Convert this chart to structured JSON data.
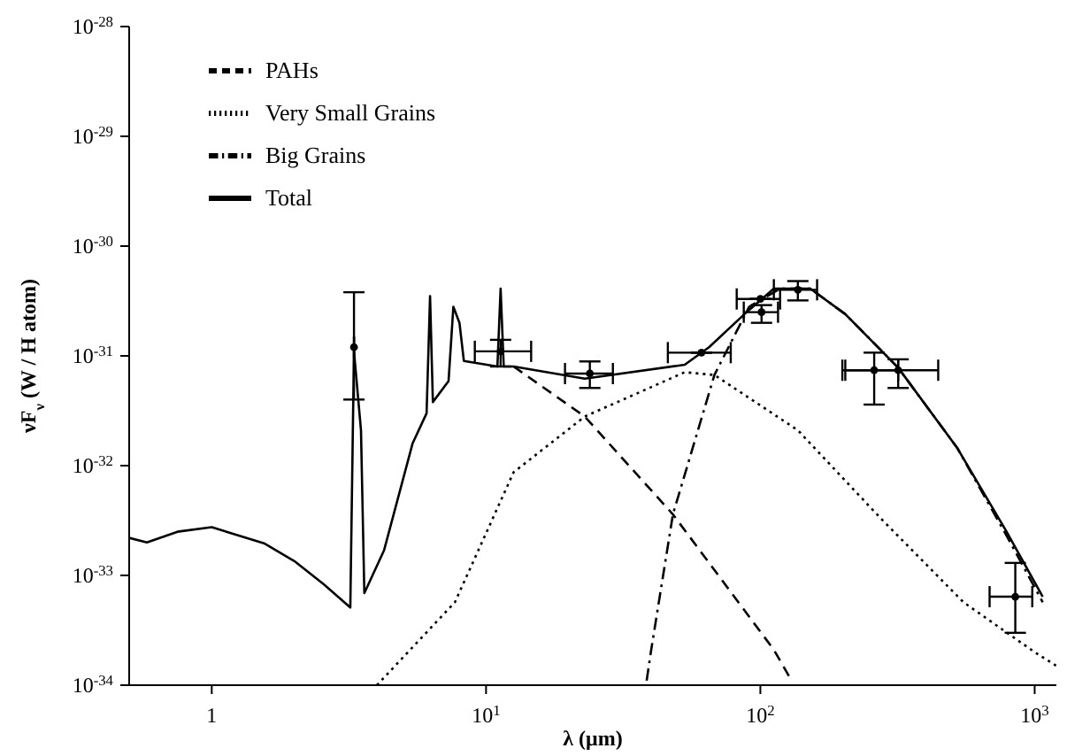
{
  "chart_data": {
    "type": "line",
    "log": "xy",
    "xlabel": "λ (μm)",
    "ylabel": "νF$_{ν}$ (W / H atom)",
    "xlim": [
      0.5,
      1200
    ],
    "ylim": [
      1e-34,
      1e-28
    ],
    "xticks": [
      {
        "value": 1,
        "label": "1"
      },
      {
        "value": 10,
        "label": "10$^{1}$"
      },
      {
        "value": 100,
        "label": "10$^{2}$"
      },
      {
        "value": 1000,
        "label": "10$^{3}$"
      }
    ],
    "yticks": [
      {
        "value": 1e-34,
        "label": "10$^{-34}$"
      },
      {
        "value": 1e-33,
        "label": "10$^{-33}$"
      },
      {
        "value": 1e-32,
        "label": "10$^{-32}$"
      },
      {
        "value": 1e-31,
        "label": "10$^{-31}$"
      },
      {
        "value": 1e-30,
        "label": "10$^{-30}$"
      },
      {
        "value": 1e-29,
        "label": "10$^{-29}$"
      },
      {
        "value": 1e-28,
        "label": "10$^{-28}$"
      }
    ],
    "legend": "top left",
    "series": [
      {
        "name": "PAHs",
        "color": "#000000",
        "line_style": "dashed",
        "x": [
          12.6,
          22.9,
          48,
          112,
          130
        ],
        "values": [
          8e-32,
          2.8e-32,
          3.6e-33,
          2.1e-34,
          1.1e-34
        ]
      },
      {
        "name": "Very Small Grains",
        "color": "#000000",
        "line_style": "dotted",
        "x": [
          4,
          7.7,
          12.6,
          22.9,
          53,
          68,
          137,
          275,
          550,
          1000,
          1200
        ],
        "values": [
          1e-34,
          5.7e-34,
          8.7e-33,
          2.8e-32,
          7.1e-32,
          6.7e-32,
          2.1e-32,
          3.3e-33,
          5.7e-34,
          2e-34,
          1.5e-34
        ]
      },
      {
        "name": "Big Grains",
        "color": "#000000",
        "line_style": "dashdot",
        "x": [
          38.5,
          40,
          48,
          68,
          91,
          118,
          152,
          204,
          318,
          522,
          790,
          1070
        ],
        "values": [
          1.1e-34,
          2.1e-34,
          3.6e-33,
          6.7e-32,
          2.8e-31,
          4.1e-31,
          4.1e-31,
          2.4e-31,
          7.8e-32,
          1.45e-32,
          2.3e-33,
          5.7e-34
        ]
      },
      {
        "name": "Total",
        "color": "#000000",
        "line_style": "solid",
        "x": [
          0.5,
          0.58,
          0.75,
          1,
          1.56,
          2,
          2.56,
          3.2,
          3.3,
          3.5,
          3.6,
          4.25,
          5.4,
          6.07,
          6.25,
          6.4,
          7.3,
          7.6,
          8,
          8.3,
          11,
          11.3,
          11.6,
          12.6,
          22.9,
          53,
          65,
          87.5,
          112,
          152,
          204,
          318,
          522,
          790,
          1070
        ],
        "values": [
          2.2e-33,
          2e-33,
          2.5e-33,
          2.75e-33,
          1.95e-33,
          1.35e-33,
          8.3e-34,
          5.1e-34,
          1.1e-31,
          2.1e-32,
          6.9e-34,
          1.7e-33,
          1.6e-32,
          3e-32,
          3.5e-31,
          3.8e-32,
          5.9e-32,
          2.8e-31,
          2e-31,
          9e-32,
          8e-32,
          4.1e-31,
          8e-32,
          8e-32,
          6.2e-32,
          8.3e-32,
          1.2e-31,
          2.4e-31,
          4.1e-31,
          4.1e-31,
          2.4e-31,
          7.8e-32,
          1.45e-32,
          2.5e-33,
          6.4e-34
        ]
      },
      {
        "type": "scatter",
        "color": "#000000",
        "marker": "circle",
        "x": [
          3.3,
          11.3,
          23.9,
          61,
          100,
          101,
          137,
          260,
          318,
          850
        ],
        "values": [
          1.2e-31,
          1.1e-31,
          6.9e-32,
          1.07e-31,
          3.3e-31,
          2.5e-31,
          4e-31,
          7.4e-32,
          7.4e-32,
          6.4e-34
        ],
        "errors": [
          [
            4e-32,
            3.8e-31
          ],
          [
            8e-32,
            1.4e-31
          ],
          [
            5.1e-32,
            8.9e-32
          ],
          null,
          null,
          [
            2e-31,
            2.9e-31
          ],
          [
            3.2e-31,
            4.8e-31
          ],
          [
            3.6e-32,
            1.07e-31
          ],
          [
            5.1e-32,
            9.3e-32
          ],
          [
            3e-34,
            1.3e-33
          ]
        ],
        "xerrors": [
          null,
          [
            9.1,
            14.6
          ],
          [
            19.4,
            29
          ],
          [
            46,
            78
          ],
          [
            82,
            118
          ],
          [
            87,
            116
          ],
          [
            112,
            161
          ],
          [
            199,
            318
          ],
          [
            204,
            445
          ],
          [
            685,
            980
          ]
        ]
      }
    ]
  }
}
